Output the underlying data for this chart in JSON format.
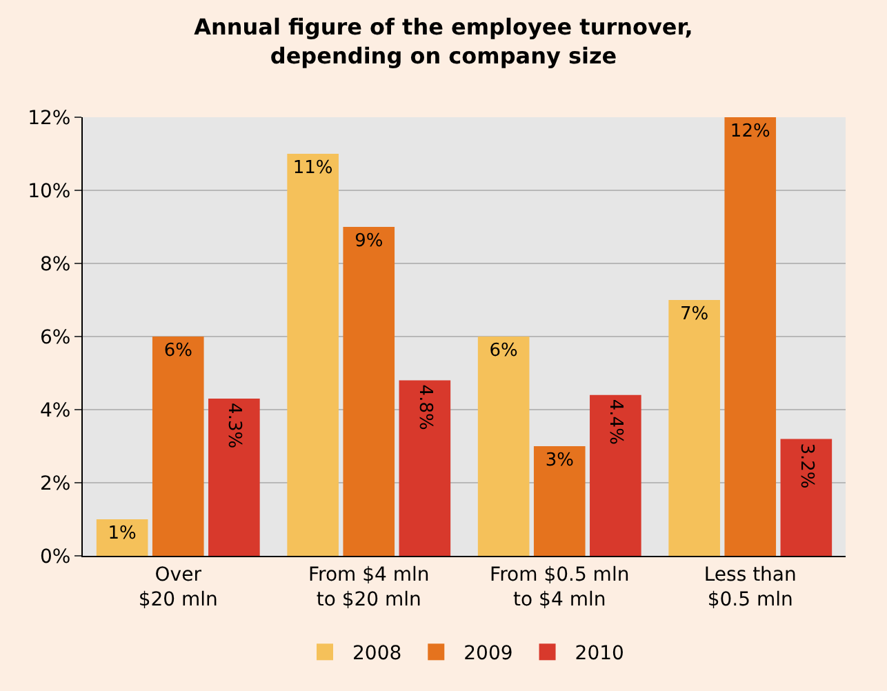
{
  "chart_data": {
    "type": "bar",
    "title": "Annual figure of the employee turnover,\ndepending on company size",
    "categories": [
      "Over\n$20 mln",
      "From $4 mln\nto $20 mln",
      "From $0.5 mln\nto $4 mln",
      "Less than\n$0.5 mln"
    ],
    "series": [
      {
        "name": "2008",
        "color": "#f5c15a",
        "values": [
          1,
          11,
          6,
          7
        ],
        "value_labels": [
          "1%",
          "11%",
          "6%",
          "7%"
        ]
      },
      {
        "name": "2009",
        "color": "#e5731e",
        "values": [
          6,
          9,
          3,
          12
        ],
        "value_labels": [
          "6%",
          "9%",
          "3%",
          "12%"
        ]
      },
      {
        "name": "2010",
        "color": "#d8392c",
        "values": [
          4.3,
          4.8,
          4.4,
          3.2
        ],
        "value_labels": [
          "4.3%",
          "4.8%",
          "4.4%",
          "3.2%"
        ]
      }
    ],
    "ylim": [
      0,
      12
    ],
    "yticks": [
      {
        "value": 0,
        "label": "0%"
      },
      {
        "value": 2,
        "label": "2%"
      },
      {
        "value": 4,
        "label": "4%"
      },
      {
        "value": 6,
        "label": "6%"
      },
      {
        "value": 8,
        "label": "8%"
      },
      {
        "value": 10,
        "label": "10%"
      },
      {
        "value": 12,
        "label": "12%"
      }
    ],
    "grid": "y",
    "legend": "bottom"
  }
}
